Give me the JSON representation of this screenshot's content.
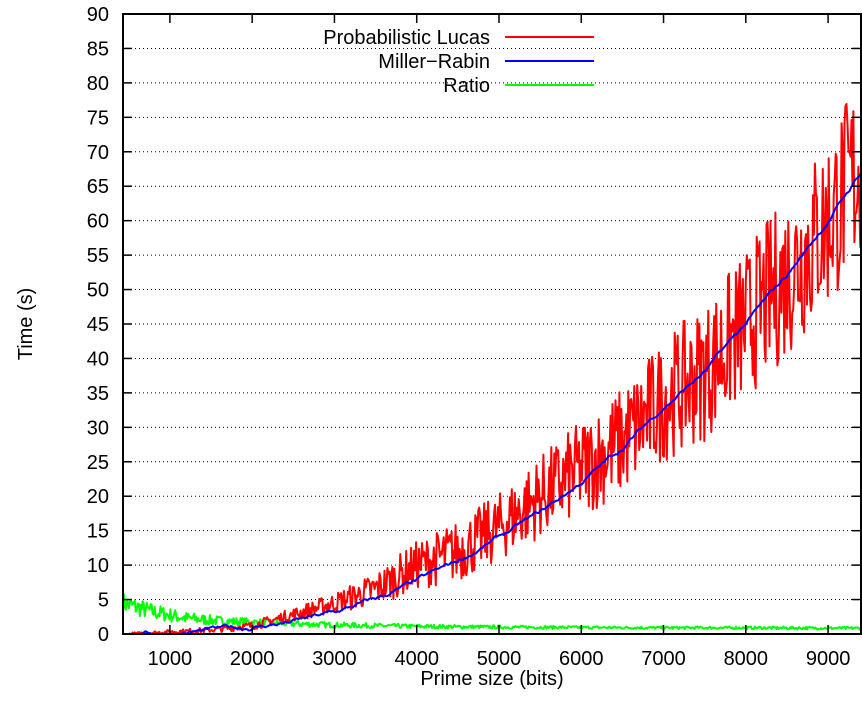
{
  "chart_data": {
    "type": "line",
    "xlabel": "Prime size (bits)",
    "ylabel": "Time (s)",
    "xlim": [
      430,
      9400
    ],
    "ylim": [
      0,
      90
    ],
    "x_ticks": [
      1000,
      2000,
      3000,
      4000,
      5000,
      6000,
      7000,
      8000,
      9000
    ],
    "y_ticks": [
      0,
      5,
      10,
      15,
      20,
      25,
      30,
      35,
      40,
      45,
      50,
      55,
      60,
      65,
      70,
      75,
      80,
      85,
      90
    ],
    "grid": "horizontal-dotted",
    "legend_position": "top-center",
    "series": [
      {
        "name": "Probabilistic Lucas",
        "color": "#ff0000",
        "x": [
          500,
          1000,
          1500,
          2000,
          2500,
          3000,
          3500,
          4000,
          4500,
          5000,
          5500,
          6000,
          6500,
          7000,
          7500,
          8000,
          8500,
          9000,
          9400
        ],
        "y": [
          0,
          0.3,
          0.6,
          1.2,
          2.8,
          4.5,
          6.5,
          10,
          12,
          15.5,
          20,
          24,
          28,
          34,
          38,
          45,
          52,
          60,
          68
        ],
        "noise_amplitude": [
          0.2,
          0.3,
          0.4,
          0.6,
          1,
          1.5,
          2.5,
          3.5,
          4.5,
          5,
          6,
          7,
          8,
          9,
          10,
          11,
          12,
          13,
          14
        ]
      },
      {
        "name": "Miller−Rabin",
        "color": "#0000ff",
        "x": [
          500,
          1000,
          1500,
          2000,
          2500,
          3000,
          3500,
          4000,
          4500,
          5000,
          5500,
          6000,
          6500,
          7000,
          7500,
          8000,
          8500,
          9000,
          9400
        ],
        "y": [
          0,
          0.2,
          0.5,
          1,
          1.8,
          3,
          5,
          7.5,
          10.5,
          14,
          17.5,
          22,
          27,
          33,
          38,
          45,
          52,
          60,
          67
        ]
      },
      {
        "name": "Ratio",
        "color": "#00ff00",
        "x": [
          430,
          800,
          1200,
          1600,
          2000,
          2500,
          3000,
          3500,
          4000,
          5000,
          6000,
          7000,
          8000,
          9000,
          9400
        ],
        "y": [
          4.5,
          3.2,
          2.3,
          1.9,
          1.7,
          1.5,
          1.3,
          1.2,
          1.1,
          1.0,
          0.95,
          0.9,
          0.9,
          0.85,
          0.85
        ],
        "noise_amplitude": [
          1.5,
          1.2,
          0.9,
          0.7,
          0.6,
          0.5,
          0.4,
          0.35,
          0.3,
          0.25,
          0.2,
          0.2,
          0.2,
          0.2,
          0.2
        ]
      }
    ]
  }
}
